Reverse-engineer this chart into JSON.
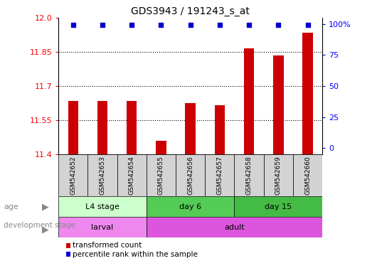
{
  "title": "GDS3943 / 191243_s_at",
  "samples": [
    "GSM542652",
    "GSM542653",
    "GSM542654",
    "GSM542655",
    "GSM542656",
    "GSM542657",
    "GSM542658",
    "GSM542659",
    "GSM542660"
  ],
  "bar_values": [
    11.635,
    11.635,
    11.635,
    11.46,
    11.625,
    11.615,
    11.865,
    11.835,
    11.935
  ],
  "percentile_values": [
    99,
    99,
    99,
    99,
    99,
    99,
    99,
    99,
    99
  ],
  "ylim": [
    11.4,
    12.0
  ],
  "yticks_left": [
    11.4,
    11.55,
    11.7,
    11.85,
    12.0
  ],
  "yticks_right": [
    0,
    25,
    50,
    75,
    100
  ],
  "bar_color": "#cc0000",
  "dot_color": "#0000cc",
  "age_groups": [
    {
      "label": "L4 stage",
      "start": 0,
      "end": 3,
      "color": "#ccffcc"
    },
    {
      "label": "day 6",
      "start": 3,
      "end": 6,
      "color": "#55cc55"
    },
    {
      "label": "day 15",
      "start": 6,
      "end": 9,
      "color": "#44bb44"
    }
  ],
  "dev_groups": [
    {
      "label": "larval",
      "start": 0,
      "end": 3,
      "color": "#ee88ee"
    },
    {
      "label": "adult",
      "start": 3,
      "end": 9,
      "color": "#dd55dd"
    }
  ],
  "legend_bar_label": "transformed count",
  "legend_dot_label": "percentile rank within the sample",
  "grid_color": "#000000",
  "background_color": "#ffffff",
  "sample_bg_color": "#d3d3d3",
  "label_color": "#888888"
}
